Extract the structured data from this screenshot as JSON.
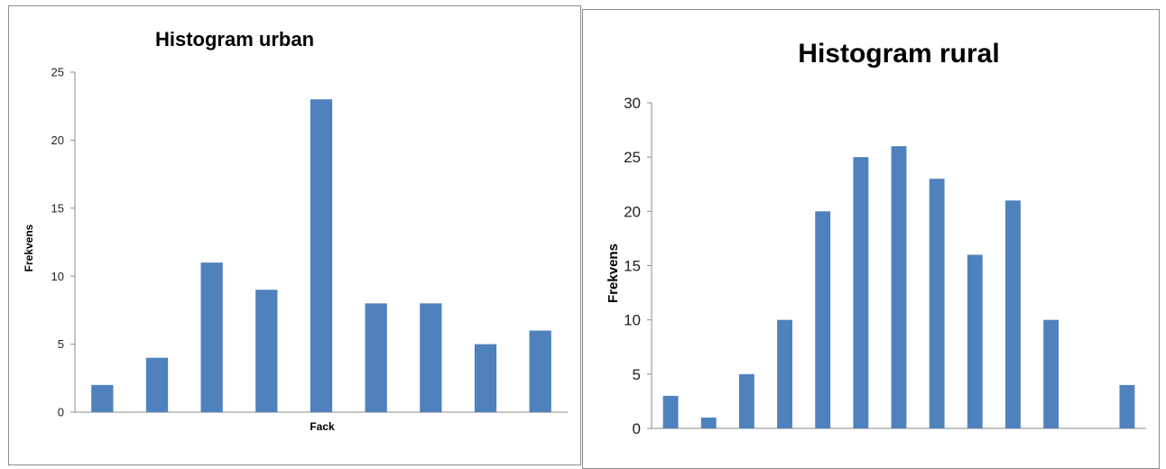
{
  "chart_data": [
    {
      "type": "bar",
      "title": "Histogram urban",
      "xlabel": "Fack",
      "ylabel": "Frekvens",
      "ylim": [
        0,
        25
      ],
      "yticks": [
        0,
        5,
        10,
        15,
        20,
        25
      ],
      "grid": false,
      "legend": "none",
      "color": "#4f81bd",
      "values": [
        2,
        4,
        11,
        9,
        23,
        8,
        8,
        5,
        6
      ]
    },
    {
      "type": "bar",
      "title": "Histogram rural",
      "xlabel": "",
      "ylabel": "Frekvens",
      "ylim": [
        0,
        30
      ],
      "yticks": [
        0,
        5,
        10,
        15,
        20,
        25,
        30
      ],
      "grid": false,
      "legend": "none",
      "color": "#4f81bd",
      "values": [
        3,
        1,
        5,
        10,
        20,
        25,
        26,
        23,
        16,
        21,
        10,
        0,
        4
      ]
    }
  ]
}
